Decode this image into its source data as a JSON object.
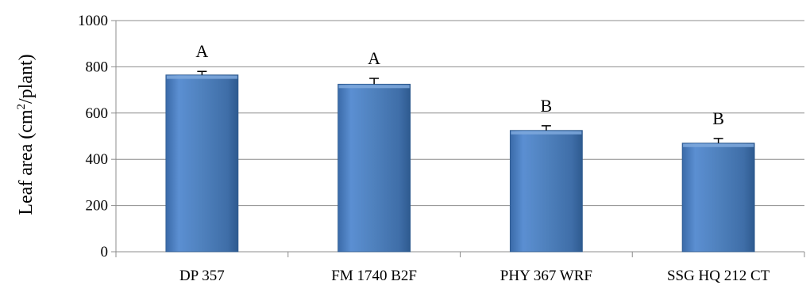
{
  "chart_data": {
    "type": "bar",
    "ylabel": {
      "prefix": "Leaf area (cm",
      "superscript": "2",
      "suffix": "/plant)"
    },
    "xlabel": "",
    "ylim": [
      0,
      1000
    ],
    "yticks": [
      0,
      200,
      400,
      600,
      800,
      1000
    ],
    "grid": true,
    "legend": "none",
    "bar_color": "#4f81bd",
    "categories": [
      "DP 357",
      "FM 1740 B2F",
      "PHY 367 WRF",
      "SSG HQ 212 CT"
    ],
    "values": [
      765,
      725,
      525,
      470
    ],
    "errors": [
      15,
      25,
      20,
      20
    ],
    "significance_letters": [
      "A",
      "A",
      "B",
      "B"
    ]
  }
}
